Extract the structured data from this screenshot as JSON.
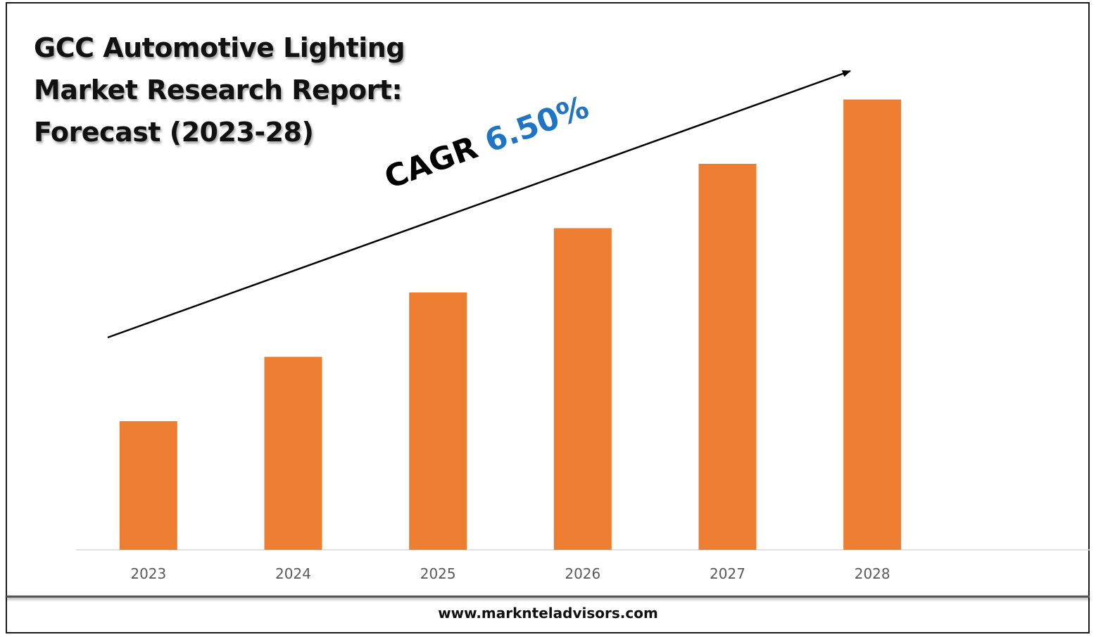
{
  "title": "GCC Automotive Lighting Market Research Report: Forecast (2023-28)",
  "annotation": {
    "label": "CAGR",
    "value": "6.50%",
    "value_color": "#1f74c4"
  },
  "footer": {
    "url": "www.marknteladvisors.com"
  },
  "colors": {
    "bar": "#ed7d31",
    "axis": "#d9d9d9",
    "tick_label": "#595959",
    "trend_arrow": "#000000"
  },
  "chart_data": {
    "type": "bar",
    "title": "GCC Automotive Lighting Market Research Report: Forecast (2023-28)",
    "xlabel": "",
    "ylabel": "",
    "categories": [
      "2023",
      "2024",
      "2025",
      "2026",
      "2027",
      "2028"
    ],
    "values": [
      1.0,
      1.5,
      2.0,
      2.5,
      3.0,
      3.5
    ],
    "ylim": [
      0,
      4
    ],
    "y_axis_visible": false,
    "grid": false,
    "legend": "none",
    "annotations": [
      "CAGR 6.50%"
    ],
    "trend_arrow": true
  }
}
